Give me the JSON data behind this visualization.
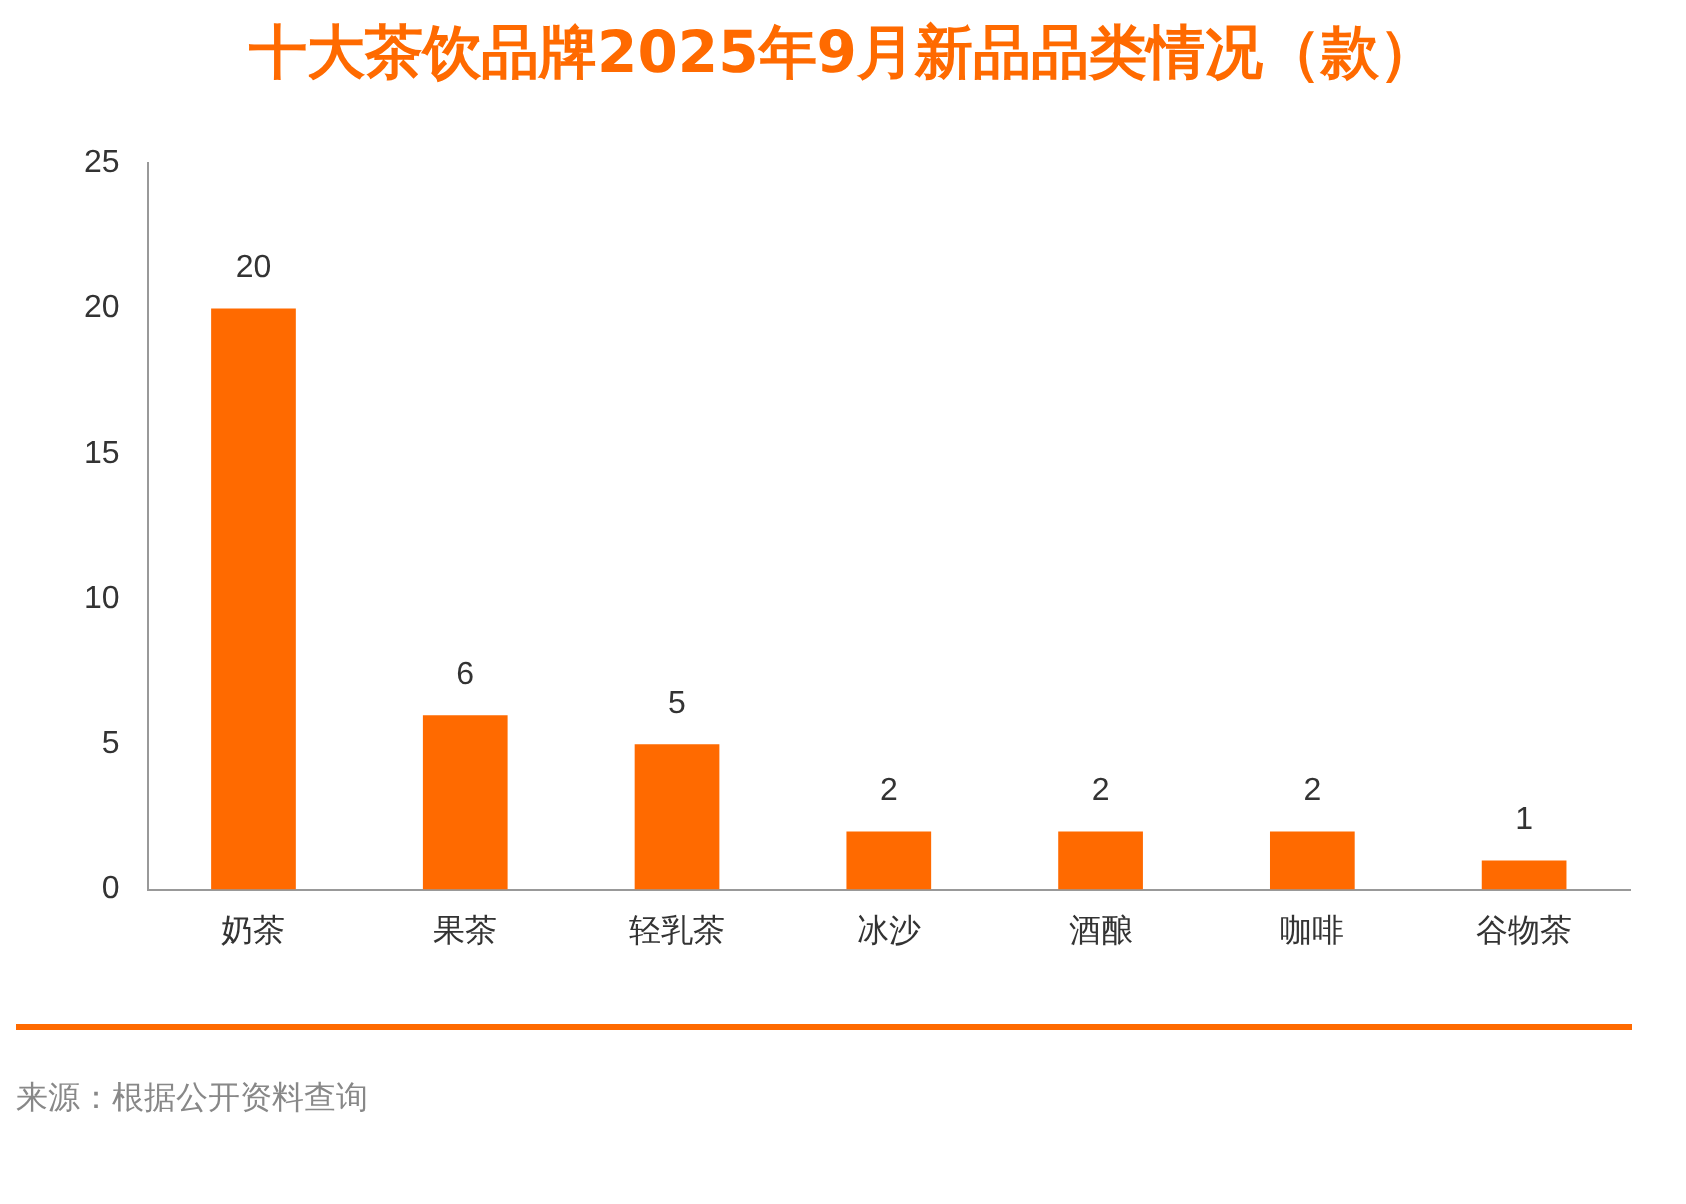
{
  "chart_data": {
    "type": "bar",
    "title": "十大茶饮品牌2025年9月新品品类情况（款）",
    "categories": [
      "奶茶",
      "果茶",
      "轻乳茶",
      "冰沙",
      "酒酿",
      "咖啡",
      "谷物茶"
    ],
    "values": [
      20,
      6,
      5,
      2,
      2,
      2,
      1
    ],
    "color": "#ff6a00",
    "ylim": [
      0,
      25
    ],
    "yticks": [
      0,
      5,
      10,
      15,
      20,
      25
    ],
    "data_labels": true,
    "annotations": [
      "来源：根据公开资料查询"
    ]
  }
}
